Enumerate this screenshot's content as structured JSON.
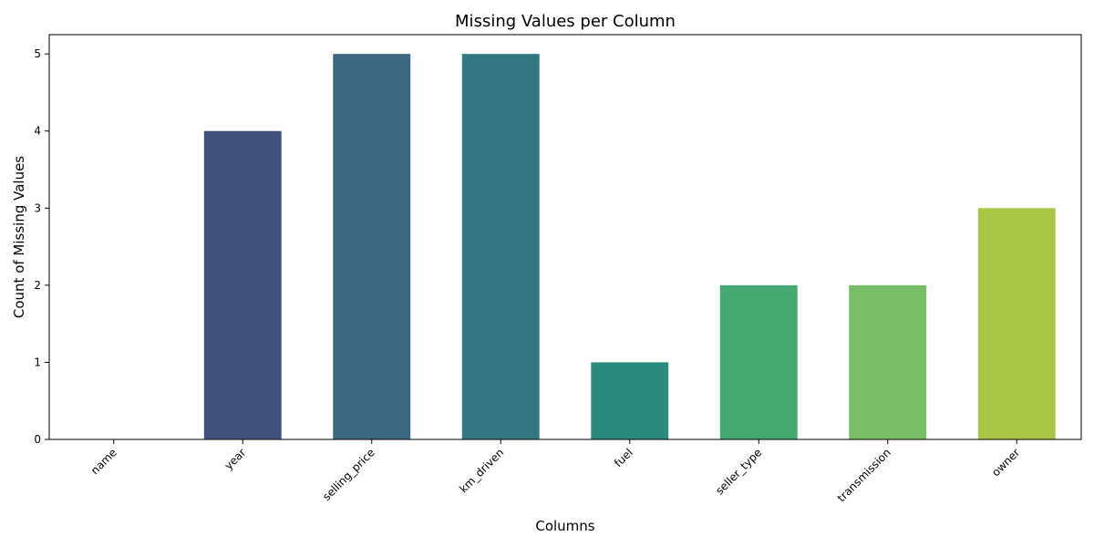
{
  "chart_data": {
    "type": "bar",
    "title": "Missing Values per Column",
    "xlabel": "Columns",
    "ylabel": "Count of Missing Values",
    "categories": [
      "name",
      "year",
      "selling_price",
      "km_driven",
      "fuel",
      "seller_type",
      "transmission",
      "owner"
    ],
    "values": [
      0,
      4,
      5,
      5,
      1,
      2,
      2,
      3
    ],
    "colors": [
      "#46337e",
      "#46527e",
      "#3e6781",
      "#337880",
      "#2b8c7e",
      "#45a873",
      "#77be67",
      "#a8c543"
    ],
    "ylim": [
      0,
      5.25
    ],
    "yticks": [
      0,
      1,
      2,
      3,
      4,
      5
    ],
    "grid": false,
    "legend": "none"
  }
}
